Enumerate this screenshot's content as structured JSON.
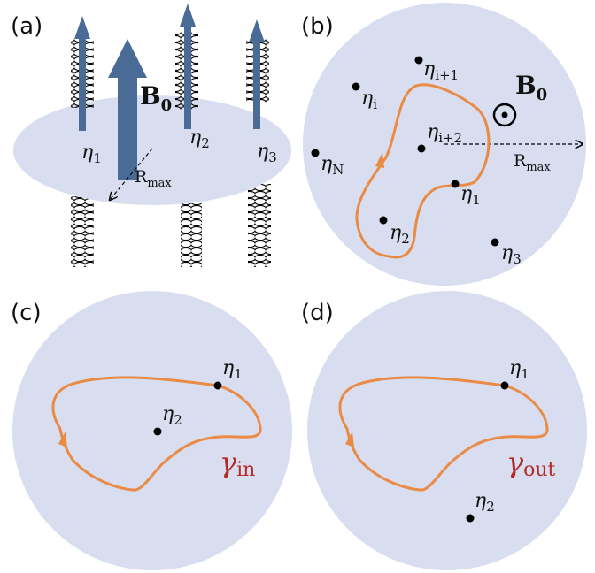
{
  "panels": {
    "a": {
      "label": "(a)",
      "field_label": "B",
      "field_sub": "0",
      "radius_label": "R",
      "radius_sub": "max",
      "vortices": [
        {
          "sym": "η",
          "sub": "1"
        },
        {
          "sym": "η",
          "sub": "2"
        },
        {
          "sym": "η",
          "sub": "3"
        }
      ]
    },
    "b": {
      "label": "(b)",
      "field_label": "B",
      "field_sub": "0",
      "radius_label": "R",
      "radius_sub": "max",
      "points": [
        {
          "sym": "η",
          "sub": "i+1"
        },
        {
          "sym": "η",
          "sub": "i"
        },
        {
          "sym": "η",
          "sub": "i+2"
        },
        {
          "sym": "η",
          "sub": "N"
        },
        {
          "sym": "η",
          "sub": "1"
        },
        {
          "sym": "η",
          "sub": "2"
        },
        {
          "sym": "η",
          "sub": "3"
        }
      ]
    },
    "c": {
      "label": "(c)",
      "points": [
        {
          "sym": "η",
          "sub": "1"
        },
        {
          "sym": "η",
          "sub": "2"
        }
      ],
      "curve_sym": "γ",
      "curve_sub": "in"
    },
    "d": {
      "label": "(d)",
      "points": [
        {
          "sym": "η",
          "sub": "1"
        },
        {
          "sym": "η",
          "sub": "2"
        }
      ],
      "curve_sym": "γ",
      "curve_sub": "out"
    }
  },
  "colors": {
    "disk": "#d8def0",
    "arrow": "#4a6b96",
    "loop": "#e98a45",
    "gamma": "#b52a26"
  }
}
